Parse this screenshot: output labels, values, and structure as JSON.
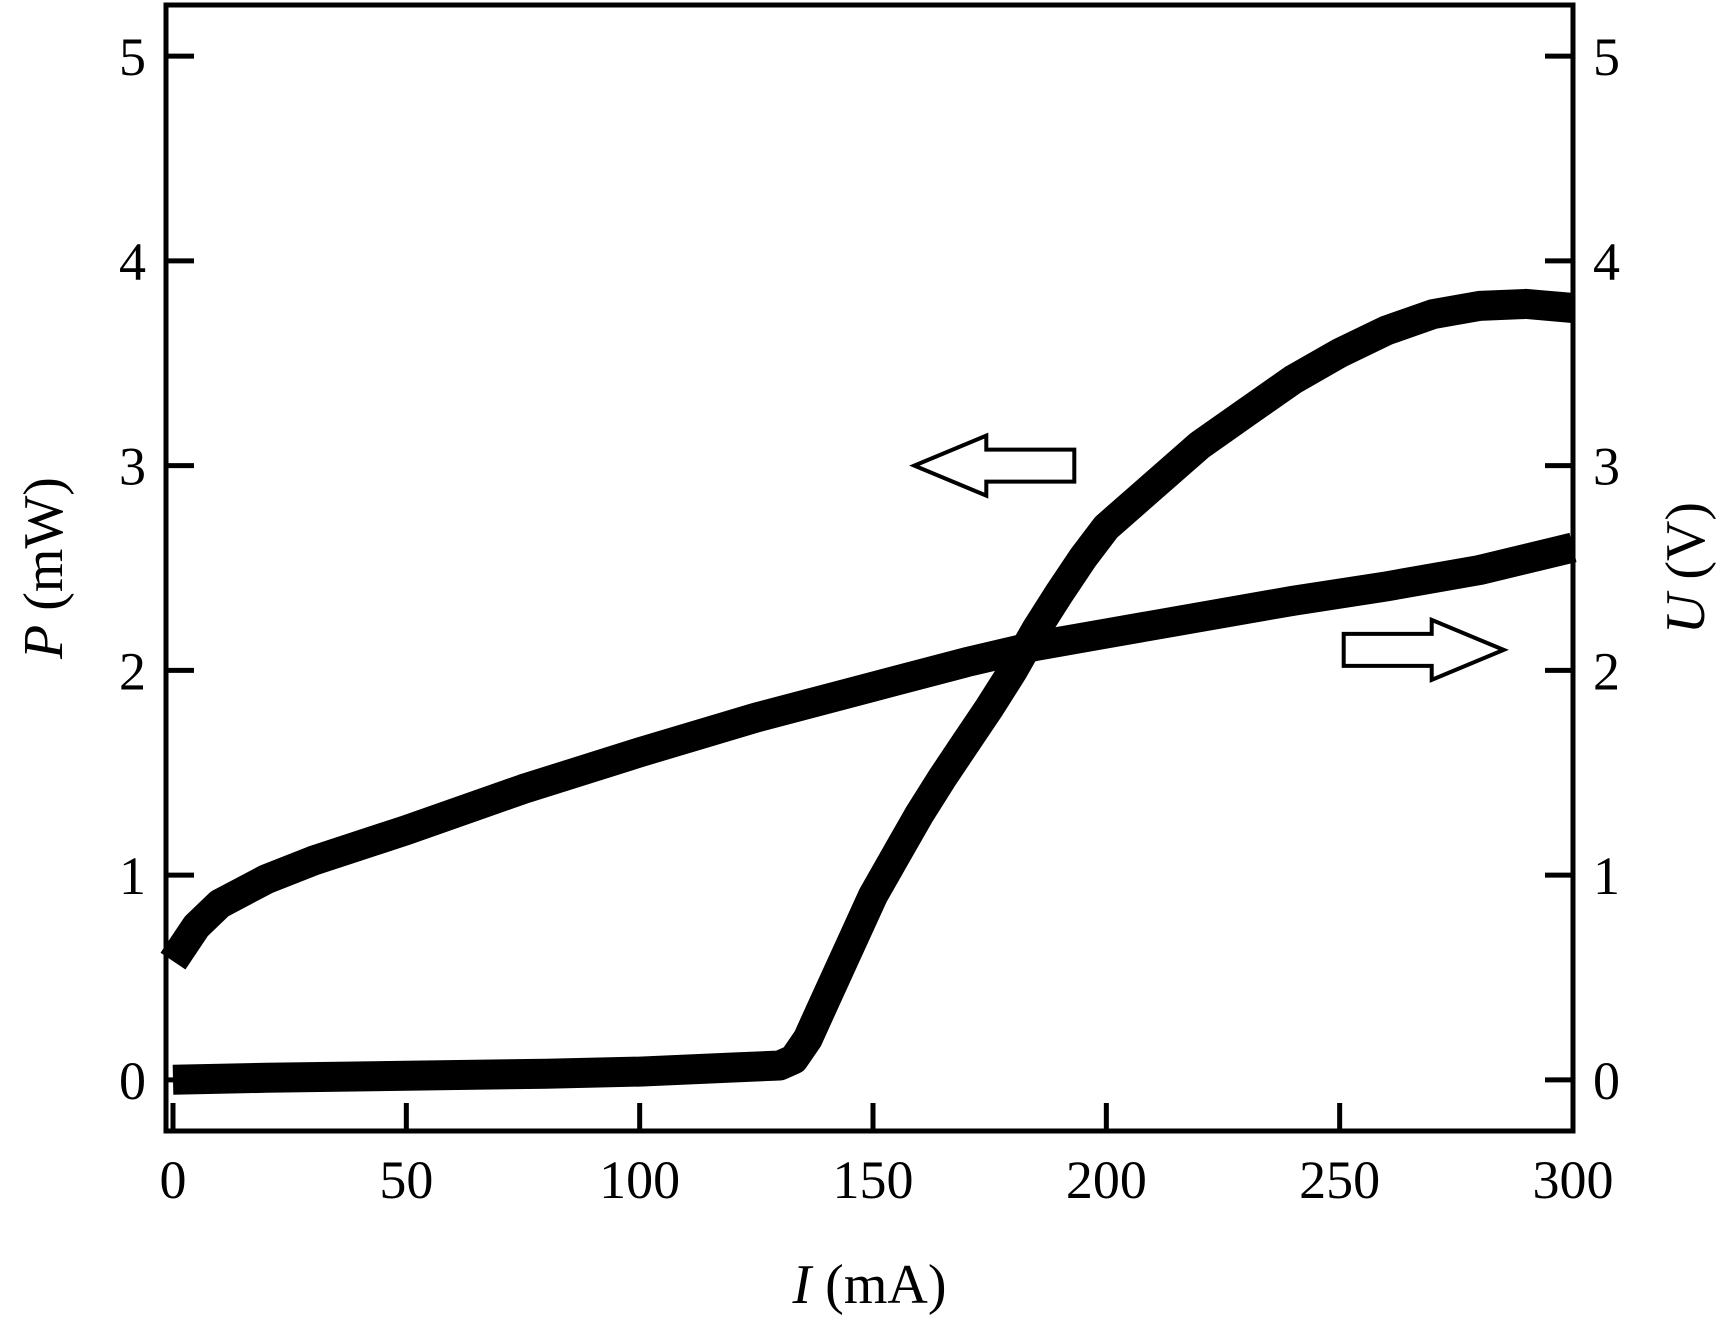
{
  "chart_data": {
    "type": "line",
    "xlabel": {
      "var": "I",
      "unit": " (mA)"
    },
    "ylabel_left": {
      "var": "P",
      "unit": " (mW)"
    },
    "ylabel_right": {
      "var": "U",
      "unit": " (V)"
    },
    "xlim": [
      -1.5,
      300
    ],
    "ylim": [
      -0.25,
      5.25
    ],
    "x_ticks": [
      0,
      50,
      100,
      150,
      200,
      250,
      300
    ],
    "x_tick_labels": [
      "0",
      "50",
      "100",
      "150",
      "200",
      "250",
      "300"
    ],
    "y_ticks": [
      0,
      1,
      2,
      3,
      4,
      5
    ],
    "y_tick_labels": [
      "0",
      "1",
      "2",
      "3",
      "4",
      "5"
    ],
    "grid": false,
    "series": [
      {
        "axis": "left",
        "x": [
          0,
          20,
          50,
          80,
          100,
          120,
          130,
          133,
          136,
          140,
          145,
          150,
          155,
          160,
          165,
          170,
          175,
          180,
          185,
          190,
          195,
          200,
          210,
          220,
          230,
          240,
          250,
          260,
          270,
          280,
          290,
          300
        ],
        "y": [
          0,
          0.01,
          0.02,
          0.03,
          0.04,
          0.06,
          0.07,
          0.1,
          0.2,
          0.4,
          0.65,
          0.9,
          1.1,
          1.3,
          1.48,
          1.65,
          1.82,
          2.0,
          2.2,
          2.38,
          2.55,
          2.7,
          2.9,
          3.1,
          3.26,
          3.42,
          3.55,
          3.66,
          3.74,
          3.78,
          3.79,
          3.77
        ]
      },
      {
        "axis": "right",
        "x": [
          0,
          5,
          10,
          20,
          30,
          50,
          75,
          100,
          125,
          150,
          170,
          185,
          200,
          220,
          240,
          260,
          280,
          300
        ],
        "y": [
          0.58,
          0.75,
          0.86,
          0.98,
          1.07,
          1.22,
          1.42,
          1.6,
          1.77,
          1.92,
          2.04,
          2.12,
          2.18,
          2.26,
          2.34,
          2.41,
          2.49,
          2.6
        ]
      }
    ],
    "annotations": [
      {
        "type": "arrow",
        "direction": "left",
        "points_to": "left axis",
        "x": 176,
        "y": 3.0
      },
      {
        "type": "arrow",
        "direction": "right",
        "points_to": "right axis",
        "x": 268,
        "y": 2.1
      }
    ]
  }
}
